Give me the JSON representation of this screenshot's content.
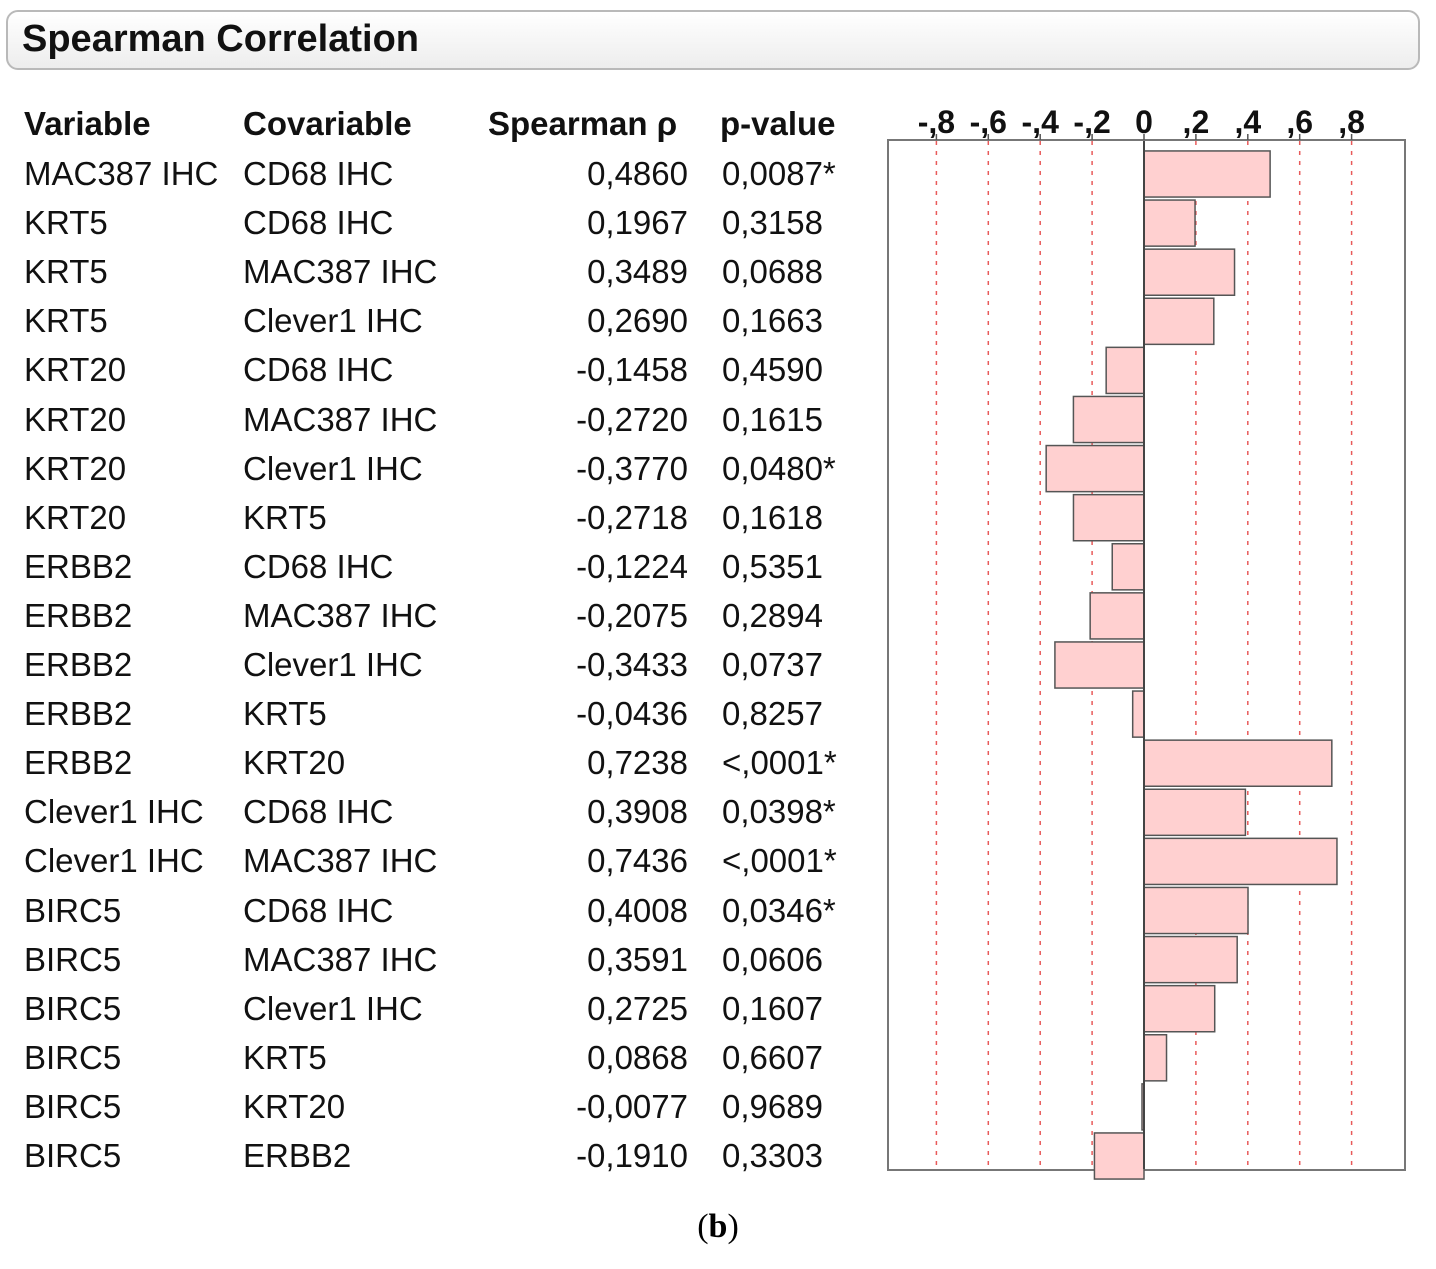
{
  "header": {
    "title": "Spearman Correlation"
  },
  "columns": {
    "variable": "Variable",
    "covariable": "Covariable",
    "spearman": "Spearman ρ",
    "pvalue": "p-value"
  },
  "caption": {
    "open": "(",
    "letter": "b",
    "close": ")"
  },
  "chart_data": {
    "type": "bar",
    "orientation": "horizontal",
    "title": "Spearman Correlation",
    "xlim": [
      -1,
      1
    ],
    "ticks": [
      -0.8,
      -0.6,
      -0.4,
      -0.2,
      0,
      0.2,
      0.4,
      0.6,
      0.8
    ],
    "tick_labels": [
      "-,8",
      "-,6",
      "-,4",
      "-,2",
      "0",
      ",2",
      ",4",
      ",6",
      ",8"
    ],
    "grid": true,
    "bar_color": "#ffd0d0",
    "grid_color": "#e85a5a",
    "rows": [
      {
        "variable": "MAC387 IHC",
        "covariable": "CD68 IHC",
        "rho_label": "0,4860",
        "p_label": "0,0087*",
        "rho": 0.486
      },
      {
        "variable": "KRT5",
        "covariable": "CD68 IHC",
        "rho_label": "0,1967",
        "p_label": "0,3158",
        "rho": 0.1967
      },
      {
        "variable": "KRT5",
        "covariable": "MAC387 IHC",
        "rho_label": "0,3489",
        "p_label": "0,0688",
        "rho": 0.3489
      },
      {
        "variable": "KRT5",
        "covariable": "Clever1 IHC",
        "rho_label": "0,2690",
        "p_label": "0,1663",
        "rho": 0.269
      },
      {
        "variable": "KRT20",
        "covariable": "CD68 IHC",
        "rho_label": "-0,1458",
        "p_label": "0,4590",
        "rho": -0.1458
      },
      {
        "variable": "KRT20",
        "covariable": "MAC387 IHC",
        "rho_label": "-0,2720",
        "p_label": "0,1615",
        "rho": -0.272
      },
      {
        "variable": "KRT20",
        "covariable": "Clever1 IHC",
        "rho_label": "-0,3770",
        "p_label": "0,0480*",
        "rho": -0.377
      },
      {
        "variable": "KRT20",
        "covariable": "KRT5",
        "rho_label": "-0,2718",
        "p_label": "0,1618",
        "rho": -0.2718
      },
      {
        "variable": "ERBB2",
        "covariable": "CD68 IHC",
        "rho_label": "-0,1224",
        "p_label": "0,5351",
        "rho": -0.1224
      },
      {
        "variable": "ERBB2",
        "covariable": "MAC387 IHC",
        "rho_label": "-0,2075",
        "p_label": "0,2894",
        "rho": -0.2075
      },
      {
        "variable": "ERBB2",
        "covariable": "Clever1 IHC",
        "rho_label": "-0,3433",
        "p_label": "0,0737",
        "rho": -0.3433
      },
      {
        "variable": "ERBB2",
        "covariable": "KRT5",
        "rho_label": "-0,0436",
        "p_label": "0,8257",
        "rho": -0.0436
      },
      {
        "variable": "ERBB2",
        "covariable": "KRT20",
        "rho_label": "0,7238",
        "p_label": "<,0001*",
        "rho": 0.7238
      },
      {
        "variable": "Clever1 IHC",
        "covariable": "CD68 IHC",
        "rho_label": "0,3908",
        "p_label": "0,0398*",
        "rho": 0.3908
      },
      {
        "variable": "Clever1 IHC",
        "covariable": "MAC387 IHC",
        "rho_label": "0,7436",
        "p_label": "<,0001*",
        "rho": 0.7436
      },
      {
        "variable": "BIRC5",
        "covariable": "CD68 IHC",
        "rho_label": "0,4008",
        "p_label": "0,0346*",
        "rho": 0.4008
      },
      {
        "variable": "BIRC5",
        "covariable": "MAC387 IHC",
        "rho_label": "0,3591",
        "p_label": "0,0606",
        "rho": 0.3591
      },
      {
        "variable": "BIRC5",
        "covariable": "Clever1 IHC",
        "rho_label": "0,2725",
        "p_label": "0,1607",
        "rho": 0.2725
      },
      {
        "variable": "BIRC5",
        "covariable": "KRT5",
        "rho_label": "0,0868",
        "p_label": "0,6607",
        "rho": 0.0868
      },
      {
        "variable": "BIRC5",
        "covariable": "KRT20",
        "rho_label": "-0,0077",
        "p_label": "0,9689",
        "rho": -0.0077
      },
      {
        "variable": "BIRC5",
        "covariable": "ERBB2",
        "rho_label": "-0,1910",
        "p_label": "0,3303",
        "rho": -0.191
      }
    ]
  }
}
